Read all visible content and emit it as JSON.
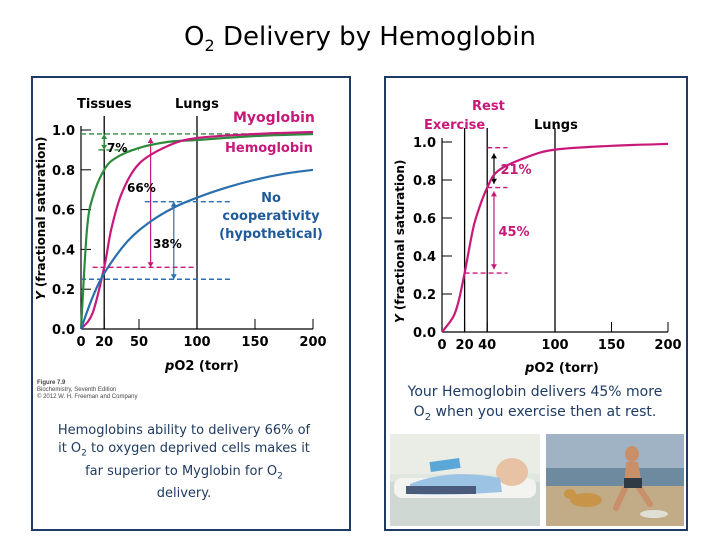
{
  "slide": {
    "title": "O",
    "title_sub": "2",
    "title_rest": " Delivery by Hemoglobin"
  },
  "left_chart": {
    "header_tissues": "Tissues",
    "header_lungs": "Lungs",
    "ylabel_italic": "Y",
    "ylabel_rest": " (fractional saturation)",
    "xlabel_p": "p",
    "xlabel_rest": "O2 (torr)",
    "curve_label_myoglobin": "Myoglobin",
    "curve_label_hemoglobin": "Hemoglobin",
    "curve_label_nocoop_1": "No",
    "curve_label_nocoop_2": "cooperativity",
    "curve_label_nocoop_3": "(hypothetical)",
    "annot_7": "7%",
    "annot_66": "66%",
    "annot_38": "38%",
    "figure_caption_1": "Figure 7.9",
    "figure_caption_2": "Biochemistry, Seventh Edition",
    "figure_caption_3": "© 2012 W. H. Freeman and Company",
    "colors": {
      "myoglobin": "#2e8b3e",
      "hemoglobin": "#c8197a",
      "nocoop": "#2a6fae",
      "text_blue": "#1f5a9a"
    }
  },
  "right_chart": {
    "header_rest": "Rest",
    "header_exercise": "Exercise",
    "header_lungs": "Lungs",
    "ylabel_italic": "Y",
    "ylabel_rest": " (fractional saturation)",
    "xlabel_p": "p",
    "xlabel_rest": "O2 (torr)",
    "annot_21": "21%",
    "annot_45": "45%"
  },
  "captions": {
    "left_1": "Hemoglobins ability to delivery 66% of",
    "left_2": "it O",
    "left_2_sub": "2",
    "left_2_rest": " to oxygen deprived cells makes it",
    "left_3": "far superior to Myglobin for O",
    "left_3_sub": "2",
    "left_4": "delivery.",
    "right_1": "Your Hemoglobin delivers 45% more",
    "right_2": "O",
    "right_2_sub": "2",
    "right_2_rest": " when you exercise then at rest."
  },
  "chart_data": [
    {
      "type": "line",
      "xlabel": "pO2 (torr)",
      "ylabel": "Y (fractional saturation)",
      "xlim": [
        0,
        200
      ],
      "ylim": [
        0,
        1.0
      ],
      "x_ticks": [
        0,
        20,
        50,
        100,
        150,
        200
      ],
      "y_ticks": [
        0.0,
        0.2,
        0.4,
        0.6,
        0.8,
        1.0
      ],
      "series": [
        {
          "name": "Myoglobin",
          "x": [
            0,
            5,
            10,
            20,
            30,
            50,
            75,
            100,
            150,
            200
          ],
          "y": [
            0.0,
            0.49,
            0.66,
            0.8,
            0.86,
            0.91,
            0.94,
            0.95,
            0.97,
            0.98
          ]
        },
        {
          "name": "Hemoglobin",
          "x": [
            0,
            10,
            20,
            26,
            35,
            50,
            75,
            100,
            150,
            200
          ],
          "y": [
            0.0,
            0.08,
            0.31,
            0.5,
            0.68,
            0.83,
            0.92,
            0.96,
            0.98,
            0.99
          ]
        },
        {
          "name": "No cooperativity (hypothetical)",
          "x": [
            0,
            10,
            20,
            40,
            60,
            80,
            100,
            125,
            150,
            175,
            200
          ],
          "y": [
            0.0,
            0.16,
            0.28,
            0.44,
            0.54,
            0.61,
            0.66,
            0.71,
            0.75,
            0.78,
            0.8
          ]
        }
      ],
      "annotations": [
        "7%",
        "66%",
        "38%"
      ],
      "grid": false
    },
    {
      "type": "line",
      "xlabel": "pO2 (torr)",
      "ylabel": "Y (fractional saturation)",
      "xlim": [
        0,
        200
      ],
      "ylim": [
        0,
        1.0
      ],
      "x_ticks": [
        0,
        20,
        40,
        100,
        150,
        200
      ],
      "y_ticks": [
        0.0,
        0.2,
        0.4,
        0.6,
        0.8,
        1.0
      ],
      "series": [
        {
          "name": "Hemoglobin",
          "x": [
            0,
            10,
            15,
            20,
            26,
            30,
            40,
            50,
            75,
            100,
            150,
            200
          ],
          "y": [
            0.0,
            0.08,
            0.17,
            0.31,
            0.5,
            0.6,
            0.76,
            0.85,
            0.92,
            0.96,
            0.98,
            0.99
          ]
        }
      ],
      "annotations": [
        "21%",
        "45%"
      ],
      "grid": false
    }
  ]
}
